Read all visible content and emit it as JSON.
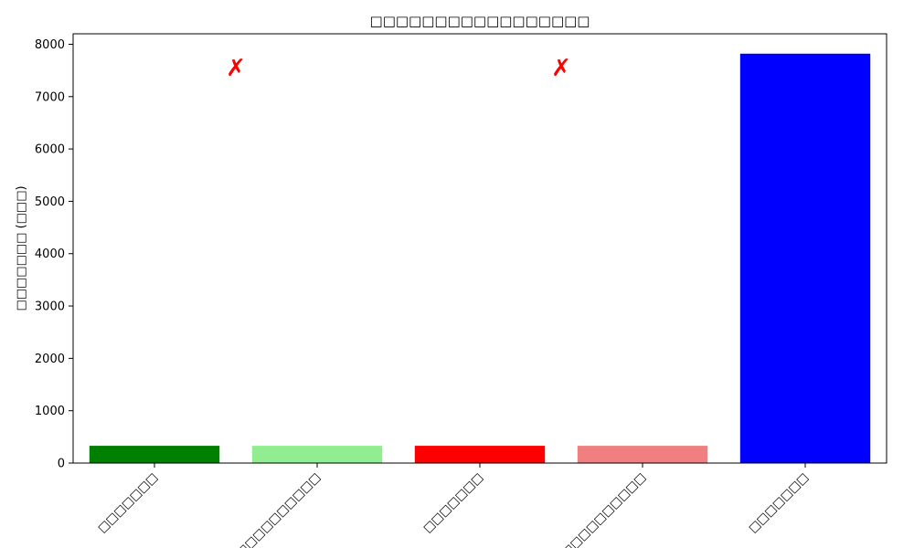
{
  "chart_data": {
    "type": "bar",
    "title": "□□□□□□□□□□□□□□□□□",
    "xlabel": "",
    "ylabel": "□□□□□□□ (□□□)",
    "categories": [
      "□□□□□□□",
      "□□□□□□□□□□",
      "□□□□□□□",
      "□□□□□□□□□□",
      "□□□□□□□"
    ],
    "values": [
      330,
      330,
      330,
      330,
      7820
    ],
    "colors": [
      "#008000",
      "#90ee90",
      "#ff0000",
      "#f08080",
      "#0000ff"
    ],
    "ylim": [
      0,
      8200
    ],
    "yticks": [
      0,
      1000,
      2000,
      3000,
      4000,
      5000,
      6000,
      7000,
      8000
    ],
    "grid": false,
    "annotations": [
      {
        "text": "✗",
        "after_index": 0,
        "y": 7400,
        "color": "#ff0000"
      },
      {
        "text": "✗",
        "after_index": 2,
        "y": 7400,
        "color": "#ff0000"
      }
    ]
  }
}
